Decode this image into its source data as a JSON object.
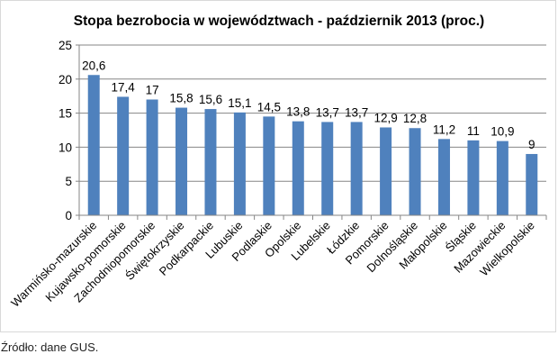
{
  "chart_data": {
    "type": "bar",
    "title": "Stopa bezrobocia w województwach - październik 2013 (proc.)",
    "xlabel": "",
    "ylabel": "",
    "ylim": [
      0,
      25
    ],
    "yticks": [
      0,
      5,
      10,
      15,
      20,
      25
    ],
    "grid": true,
    "legend": "none",
    "categories": [
      "Warmińsko-mazurskie",
      "Kujawsko-pomorskie",
      "Zachodniopomorskie",
      "Świętokrzyskie",
      "Podkarpackie",
      "Lubuskie",
      "Podlaskie",
      "Opolskie",
      "Lubelskie",
      "Łódzkie",
      "Pomorskie",
      "Dolnośląskie",
      "Małopolskie",
      "Śląskie",
      "Mazowieckie",
      "Wielkopolskie"
    ],
    "values": [
      20.6,
      17.4,
      17,
      15.8,
      15.6,
      15.1,
      14.5,
      13.8,
      13.7,
      13.7,
      12.9,
      12.8,
      11.2,
      11,
      10.9,
      9
    ],
    "value_labels": [
      "20,6",
      "17,4",
      "17",
      "15,8",
      "15,6",
      "15,1",
      "14,5",
      "13,8",
      "13,7",
      "13,7",
      "12,9",
      "12,8",
      "11,2",
      "11",
      "10,9",
      "9"
    ],
    "bar_color": "#4f81bd"
  },
  "source_note": "Źródło: dane GUS."
}
